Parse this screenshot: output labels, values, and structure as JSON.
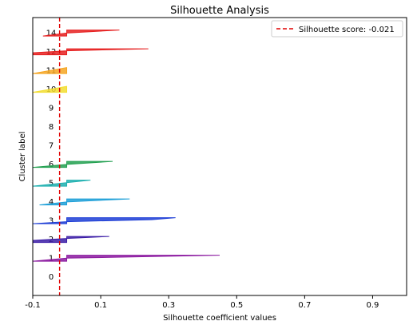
{
  "chart_data": {
    "type": "silhouette",
    "title": "Silhouette Analysis",
    "xlabel": "Silhouette coefficient values",
    "ylabel": "Cluster label",
    "xlim": [
      -0.1,
      1.0
    ],
    "xticks": [
      -0.1,
      0.1,
      0.3,
      0.5,
      0.7,
      0.9
    ],
    "xtick_labels": [
      "-0.1",
      "0.1",
      "0.3",
      "0.5",
      "0.7",
      "0.9"
    ],
    "legend": {
      "label": "Silhouette score: -0.021",
      "placement": "top-right"
    },
    "silhouette_score": -0.021,
    "clusters": [
      {
        "label": "0",
        "color": "#8c1aa0",
        "samples": []
      },
      {
        "label": "1",
        "color": "#8c1aa0",
        "samples": [
          0.45,
          0.0,
          -0.1
        ]
      },
      {
        "label": "2",
        "color": "#3b1ca6",
        "samples": [
          0.125,
          0.0,
          -0.1,
          -0.1
        ]
      },
      {
        "label": "3",
        "color": "#1f3fd6",
        "samples": [
          0.32,
          0.25,
          0.0,
          -0.1
        ]
      },
      {
        "label": "4",
        "color": "#1fa0d8",
        "samples": [
          0.185,
          0.0,
          -0.08
        ]
      },
      {
        "label": "5",
        "color": "#1fb0b0",
        "samples": [
          0.07,
          -0.1
        ]
      },
      {
        "label": "6",
        "color": "#22a050",
        "samples": [
          0.135,
          0.0,
          -0.1
        ]
      },
      {
        "label": "7",
        "color": "#6cbf2a",
        "samples": []
      },
      {
        "label": "8",
        "color": "#b0c020",
        "samples": []
      },
      {
        "label": "9",
        "color": "#e6cf22",
        "samples": []
      },
      {
        "label": "10",
        "color": "#f2dd30",
        "samples": [
          0.0,
          -0.1
        ]
      },
      {
        "label": "11",
        "color": "#f5a623",
        "samples": [
          0.0,
          -0.1
        ]
      },
      {
        "label": "12",
        "color": "#e62020",
        "samples": [
          0.24,
          0.0,
          -0.1,
          -0.1
        ]
      },
      {
        "label": "14",
        "color": "#e62020",
        "samples": [
          0.155,
          0.0,
          -0.07
        ]
      }
    ]
  }
}
